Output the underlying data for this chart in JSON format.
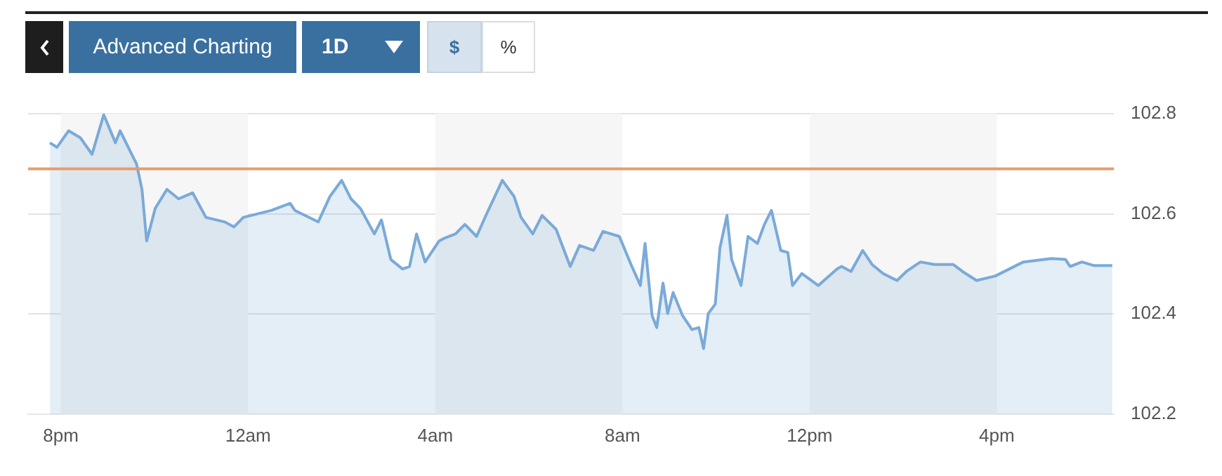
{
  "chart_data": {
    "type": "area",
    "annotations": [
      "Advanced Charting",
      "1D",
      "$",
      "%"
    ],
    "x": [
      "--01-01T19:46",
      "--01-01T19:55",
      "--01-01T20:10",
      "--01-01T20:25",
      "--01-01T20:40",
      "--01-01T20:55",
      "--01-01T21:10",
      "--01-01T21:16",
      "--01-01T21:28",
      "--01-01T21:37",
      "--01-01T21:44",
      "--01-01T21:50",
      "--01-01T22:01",
      "--01-01T22:16",
      "--01-01T22:31",
      "--01-01T22:49",
      "--01-01T23:06",
      "--01-01T23:30",
      "--01-01T23:42",
      "--01-01T23:54",
      "--01-02T00:30",
      "--01-02T00:54",
      "--01-02T01:00",
      "--01-02T01:30",
      "--01-02T01:45",
      "--01-02T02:00",
      "--01-02T02:12",
      "--01-02T02:24",
      "--01-02T02:42",
      "--01-02T02:51",
      "--01-02T03:03",
      "--01-02T03:18",
      "--01-02T03:27",
      "--01-02T03:36",
      "--01-02T03:47",
      "--01-02T04:05",
      "--01-02T04:11",
      "--01-02T04:26",
      "--01-02T04:38",
      "--01-02T04:53",
      "--01-02T05:05",
      "--01-02T05:26",
      "--01-02T05:41",
      "--01-02T05:50",
      "--01-02T06:05",
      "--01-02T06:17",
      "--01-02T06:35",
      "--01-02T06:53",
      "--01-02T07:05",
      "--01-02T07:23",
      "--01-02T07:35",
      "--01-02T07:56",
      "--01-02T08:11",
      "--01-02T08:23",
      "--01-02T08:29",
      "--01-02T08:38",
      "--01-02T08:44",
      "--01-02T08:52",
      "--01-02T08:58",
      "--01-02T09:05",
      "--01-02T09:17",
      "--01-02T09:29",
      "--01-02T09:38",
      "--01-02T09:44",
      "--01-02T09:50",
      "--01-02T09:59",
      "--01-02T10:05",
      "--01-02T10:14",
      "--01-02T10:20",
      "--01-02T10:32",
      "--01-02T10:41",
      "--01-02T10:53",
      "--01-02T11:02",
      "--01-02T11:11",
      "--01-02T11:23",
      "--01-02T11:32",
      "--01-02T11:38",
      "--01-02T11:50",
      "--01-02T12:11",
      "--01-02T12:35",
      "--01-02T12:41",
      "--01-02T12:53",
      "--01-02T13:08",
      "--01-02T13:20",
      "--01-02T13:34",
      "--01-02T13:52",
      "--01-02T14:04",
      "--01-02T14:22",
      "--01-02T14:40",
      "--01-02T15:04",
      "--01-02T15:16",
      "--01-02T15:34",
      "--01-02T15:58",
      "--01-02T16:16",
      "--01-02T16:34",
      "--01-02T17:10",
      "--01-02T17:28",
      "--01-02T17:34",
      "--01-02T17:49",
      "--01-02T18:04",
      "--01-02T18:28"
    ],
    "series": [
      {
        "color": "#7aaad8",
        "values": [
          102.742,
          102.733,
          102.766,
          102.752,
          102.719,
          102.798,
          102.742,
          102.766,
          102.728,
          102.7,
          102.649,
          102.546,
          102.611,
          102.649,
          102.63,
          102.642,
          102.593,
          102.584,
          102.574,
          102.593,
          102.607,
          102.621,
          102.607,
          102.584,
          102.635,
          102.667,
          102.63,
          102.611,
          102.56,
          102.588,
          102.509,
          102.49,
          102.495,
          102.56,
          102.504,
          102.546,
          102.551,
          102.56,
          102.579,
          102.555,
          102.597,
          102.667,
          102.635,
          102.593,
          102.56,
          102.597,
          102.569,
          102.495,
          102.537,
          102.527,
          102.565,
          102.555,
          102.499,
          102.457,
          102.541,
          102.397,
          102.373,
          102.462,
          102.401,
          102.443,
          102.397,
          102.369,
          102.373,
          102.331,
          102.401,
          102.42,
          102.532,
          102.597,
          102.509,
          102.457,
          102.555,
          102.541,
          102.579,
          102.607,
          102.527,
          102.523,
          102.457,
          102.481,
          102.457,
          102.49,
          102.495,
          102.485,
          102.527,
          102.499,
          102.481,
          102.467,
          102.485,
          102.504,
          102.499,
          102.499,
          102.485,
          102.467,
          102.476,
          102.49,
          102.504,
          102.511,
          102.509,
          102.495,
          102.504,
          102.497,
          102.497
        ]
      }
    ],
    "xlim": [
      "--01-01T19:18",
      "--01-02T18:30"
    ],
    "xticks": [
      {
        "value": "--01-01T20:00",
        "label": "8pm"
      },
      {
        "value": "--01-02T00:00",
        "label": "12am"
      },
      {
        "value": "--01-02T04:00",
        "label": "4am"
      },
      {
        "value": "--01-02T08:00",
        "label": "8am"
      },
      {
        "value": "--01-02T12:00",
        "label": "12pm"
      },
      {
        "value": "--01-02T16:00",
        "label": "4pm"
      }
    ],
    "ylim": [
      102.2,
      102.8
    ],
    "yticks": [
      102.2,
      102.4,
      102.6,
      102.8
    ],
    "grid": "y",
    "marker": "none",
    "line_style": "solid",
    "ref_lines": [
      {
        "axis": "y",
        "value": 102.69,
        "color": "#e59d6c"
      }
    ],
    "bands": [
      {
        "axis": "x",
        "from": "--01-01T20:00",
        "to": "--01-02T00:00",
        "color": "#f6f6f6"
      },
      {
        "axis": "x",
        "from": "--01-02T04:00",
        "to": "--01-02T08:00",
        "color": "#f6f6f6"
      },
      {
        "axis": "x",
        "from": "--01-02T12:00",
        "to": "--01-02T16:00",
        "color": "#f6f6f6"
      }
    ]
  }
}
